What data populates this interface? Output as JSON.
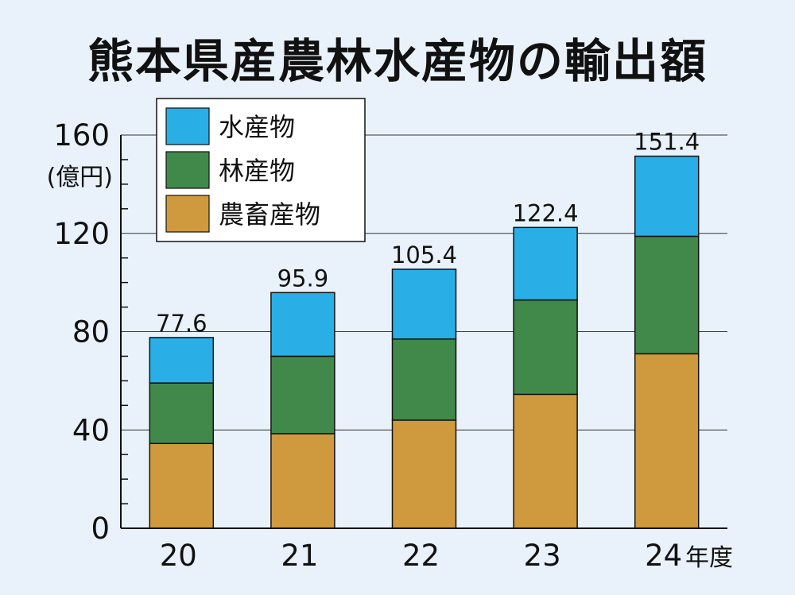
{
  "chart_data": {
    "type": "bar",
    "stacked": true,
    "title": "熊本県産農林水産物の輸出額",
    "ylabel": "(億円)",
    "xlabel": "年度",
    "categories": [
      "20",
      "21",
      "22",
      "23",
      "24"
    ],
    "ylim": [
      0,
      160
    ],
    "yticks": [
      "0",
      "40",
      "80",
      "120",
      "160"
    ],
    "grid": true,
    "legend_position": "top-left",
    "series": [
      {
        "name": "農畜産物",
        "color": "#cf9a3e",
        "values": [
          34.5,
          38.5,
          44.0,
          54.5,
          71.0
        ]
      },
      {
        "name": "林産物",
        "color": "#41894a",
        "values": [
          24.6,
          31.5,
          33.0,
          38.4,
          47.8
        ]
      },
      {
        "name": "水産物",
        "color": "#29aee6",
        "values": [
          18.5,
          25.9,
          28.4,
          29.5,
          32.6
        ]
      }
    ],
    "totals": [
      "77.6",
      "95.9",
      "105.4",
      "122.4",
      "151.4"
    ],
    "legend_order": [
      "水産物",
      "林産物",
      "農畜産物"
    ]
  }
}
